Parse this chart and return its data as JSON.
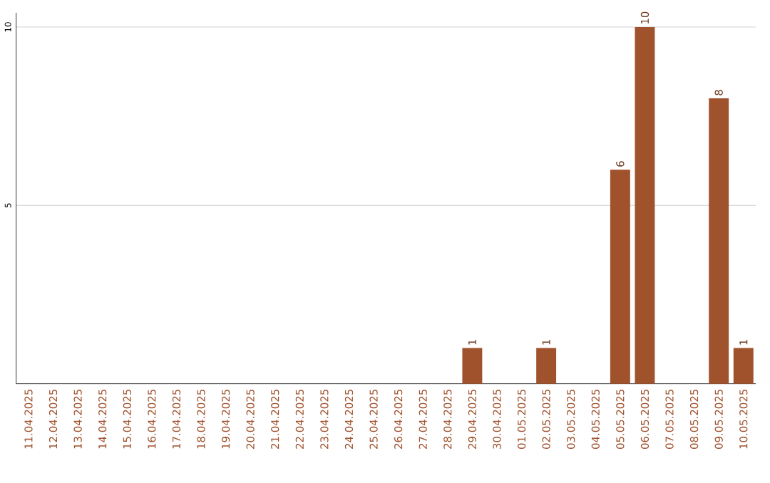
{
  "chart_data": {
    "type": "bar",
    "categories": [
      "11.04.2025",
      "12.04.2025",
      "13.04.2025",
      "14.04.2025",
      "15.04.2025",
      "16.04.2025",
      "17.04.2025",
      "18.04.2025",
      "19.04.2025",
      "20.04.2025",
      "21.04.2025",
      "22.04.2025",
      "23.04.2025",
      "24.04.2025",
      "25.04.2025",
      "26.04.2025",
      "27.04.2025",
      "28.04.2025",
      "29.04.2025",
      "30.04.2025",
      "01.05.2025",
      "02.05.2025",
      "03.05.2025",
      "04.05.2025",
      "05.05.2025",
      "06.05.2025",
      "07.05.2025",
      "08.05.2025",
      "09.05.2025",
      "10.05.2025"
    ],
    "values": [
      0,
      0,
      0,
      0,
      0,
      0,
      0,
      0,
      0,
      0,
      0,
      0,
      0,
      0,
      0,
      0,
      0,
      0,
      1,
      0,
      0,
      1,
      0,
      0,
      6,
      10,
      0,
      0,
      8,
      1
    ],
    "value_labels": [
      null,
      null,
      null,
      null,
      null,
      null,
      null,
      null,
      null,
      null,
      null,
      null,
      null,
      null,
      null,
      null,
      null,
      null,
      "1",
      null,
      null,
      "1",
      null,
      null,
      "6",
      "10",
      null,
      null,
      "8",
      "1"
    ],
    "color": "#a0522d",
    "ylim": [
      0,
      10.4
    ],
    "yticks": [
      5,
      10
    ],
    "grid": "y"
  }
}
